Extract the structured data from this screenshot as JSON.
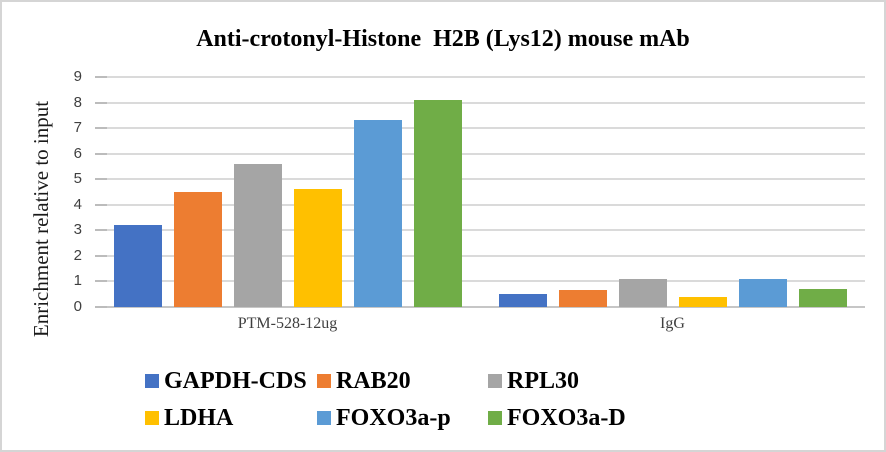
{
  "chart_data": {
    "type": "bar",
    "title": "Anti-crotonyl-Histone  H2B (Lys12) mouse mAb",
    "ylabel": "Enrichment relative to input",
    "xlabel": "",
    "categories": [
      "PTM-528-12ug",
      "IgG"
    ],
    "series": [
      {
        "name": "GAPDH-CDS",
        "color": "#4472C4",
        "values": [
          3.2,
          0.5
        ]
      },
      {
        "name": "RAB20",
        "color": "#ED7D31",
        "values": [
          4.5,
          0.65
        ]
      },
      {
        "name": "RPL30",
        "color": "#A5A5A5",
        "values": [
          5.6,
          1.1
        ]
      },
      {
        "name": "LDHA",
        "color": "#FFC000",
        "values": [
          4.6,
          0.4
        ]
      },
      {
        "name": "FOXO3a-p",
        "color": "#5B9BD5",
        "values": [
          7.3,
          1.1
        ]
      },
      {
        "name": "FOXO3a-D",
        "color": "#70AD47",
        "values": [
          8.1,
          0.7
        ]
      }
    ],
    "ylim": [
      0,
      9
    ],
    "yticks": [
      0,
      1,
      2,
      3,
      4,
      5,
      6,
      7,
      8,
      9
    ],
    "grid": true,
    "legend_position": "bottom"
  }
}
